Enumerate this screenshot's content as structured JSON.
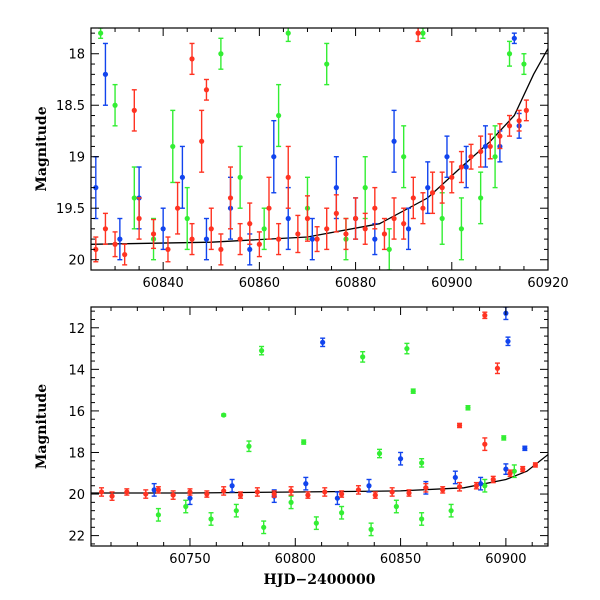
{
  "chart_data": [
    {
      "type": "scatter",
      "ylabel": "Magnitude",
      "xlabel": "",
      "xlim": [
        60825,
        60920
      ],
      "ylim": [
        20.1,
        17.75
      ],
      "y_inverted": true,
      "xticks": [
        60840,
        60860,
        60880,
        60900,
        60920
      ],
      "yticks": [
        18,
        18.5,
        19,
        19.5,
        20
      ],
      "series": [
        {
          "color": "#ff3322",
          "marker": "circle-errorbar"
        },
        {
          "color": "#1144ee",
          "marker": "circle-errorbar"
        },
        {
          "color": "#33ee33",
          "marker": "circle-errorbar"
        },
        {
          "color": "#000000",
          "marker": "line",
          "role": "model curve"
        }
      ],
      "model_curve": {
        "x": [
          60825,
          60850,
          60870,
          60885,
          60895,
          60902,
          60908,
          60913,
          60917,
          60920
        ],
        "y": [
          19.85,
          19.83,
          19.78,
          19.65,
          19.4,
          19.1,
          18.85,
          18.6,
          18.2,
          17.95
        ]
      },
      "points": {
        "red": [
          [
            60826,
            19.9,
            0.12
          ],
          [
            60828,
            19.7,
            0.15
          ],
          [
            60830,
            19.85,
            0.12
          ],
          [
            60832,
            19.95,
            0.1
          ],
          [
            60835,
            19.6,
            0.2
          ],
          [
            60838,
            19.75,
            0.14
          ],
          [
            60841,
            19.9,
            0.12
          ],
          [
            60843,
            19.5,
            0.25
          ],
          [
            60846,
            19.8,
            0.15
          ],
          [
            60848,
            18.85,
            0.3
          ],
          [
            60850,
            19.7,
            0.2
          ],
          [
            60852,
            19.9,
            0.15
          ],
          [
            60854,
            19.4,
            0.3
          ],
          [
            60856,
            19.8,
            0.15
          ],
          [
            60858,
            19.65,
            0.2
          ],
          [
            60860,
            19.85,
            0.12
          ],
          [
            60862,
            19.5,
            0.3
          ],
          [
            60864,
            19.8,
            0.15
          ],
          [
            60866,
            19.2,
            0.3
          ],
          [
            60868,
            19.75,
            0.18
          ],
          [
            60870,
            19.6,
            0.22
          ],
          [
            60872,
            19.8,
            0.12
          ],
          [
            60874,
            19.7,
            0.2
          ],
          [
            60876,
            19.55,
            0.18
          ],
          [
            60878,
            19.75,
            0.15
          ],
          [
            60880,
            19.6,
            0.2
          ],
          [
            60882,
            19.7,
            0.15
          ],
          [
            60884,
            19.5,
            0.2
          ],
          [
            60886,
            19.75,
            0.15
          ],
          [
            60888,
            19.6,
            0.2
          ],
          [
            60890,
            19.65,
            0.15
          ],
          [
            60892,
            19.4,
            0.2
          ],
          [
            60894,
            19.5,
            0.15
          ],
          [
            60896,
            19.35,
            0.2
          ],
          [
            60898,
            19.3,
            0.15
          ],
          [
            60900,
            19.2,
            0.15
          ],
          [
            60902,
            19.1,
            0.15
          ],
          [
            60904,
            19.0,
            0.12
          ],
          [
            60906,
            18.95,
            0.15
          ],
          [
            60908,
            18.9,
            0.12
          ],
          [
            60910,
            18.8,
            0.12
          ],
          [
            60912,
            18.7,
            0.1
          ],
          [
            60914,
            18.65,
            0.1
          ],
          [
            60915.5,
            18.55,
            0.1
          ],
          [
            60834,
            18.55,
            0.2
          ],
          [
            60846,
            18.05,
            0.15
          ],
          [
            60849,
            18.35,
            0.1
          ],
          [
            60893,
            17.8,
            0.08
          ]
        ],
        "blue": [
          [
            60826,
            19.3,
            0.3
          ],
          [
            60828,
            18.2,
            0.3
          ],
          [
            60831,
            19.8,
            0.2
          ],
          [
            60835,
            19.4,
            0.3
          ],
          [
            60840,
            19.7,
            0.2
          ],
          [
            60844,
            19.2,
            0.3
          ],
          [
            60849,
            19.8,
            0.2
          ],
          [
            60854,
            19.5,
            0.3
          ],
          [
            60858,
            19.9,
            0.15
          ],
          [
            60863,
            19.0,
            0.35
          ],
          [
            60866,
            19.6,
            0.3
          ],
          [
            60871,
            19.8,
            0.2
          ],
          [
            60876,
            19.3,
            0.3
          ],
          [
            60880,
            19.6,
            0.2
          ],
          [
            60884,
            19.8,
            0.15
          ],
          [
            60888,
            18.85,
            0.3
          ],
          [
            60891,
            19.7,
            0.2
          ],
          [
            60895,
            19.3,
            0.25
          ],
          [
            60899,
            19.0,
            0.2
          ],
          [
            60903,
            19.1,
            0.2
          ],
          [
            60907,
            18.9,
            0.2
          ],
          [
            60910,
            18.9,
            0.15
          ],
          [
            60913,
            17.85,
            0.05
          ],
          [
            60914,
            18.7,
            0.12
          ]
        ],
        "green": [
          [
            60827,
            17.8,
            0.05
          ],
          [
            60830,
            18.5,
            0.2
          ],
          [
            60834,
            19.4,
            0.3
          ],
          [
            60838,
            19.8,
            0.2
          ],
          [
            60842,
            18.9,
            0.35
          ],
          [
            60845,
            19.6,
            0.3
          ],
          [
            60852,
            18.0,
            0.15
          ],
          [
            60856,
            19.2,
            0.3
          ],
          [
            60861,
            19.7,
            0.2
          ],
          [
            60864,
            18.6,
            0.3
          ],
          [
            60866,
            17.8,
            0.08
          ],
          [
            60870,
            19.5,
            0.3
          ],
          [
            60874,
            18.1,
            0.2
          ],
          [
            60878,
            19.8,
            0.2
          ],
          [
            60882,
            19.3,
            0.3
          ],
          [
            60887,
            19.9,
            0.2
          ],
          [
            60890,
            19.0,
            0.3
          ],
          [
            60894,
            17.8,
            0.05
          ],
          [
            60898,
            19.6,
            0.25
          ],
          [
            60902,
            19.7,
            0.3
          ],
          [
            60906,
            19.4,
            0.25
          ],
          [
            60909,
            19.0,
            0.3
          ],
          [
            60912,
            18.0,
            0.12
          ],
          [
            60915,
            18.1,
            0.1
          ]
        ]
      }
    },
    {
      "type": "scatter",
      "ylabel": "Magnitude",
      "xlabel": "HJD−2400000",
      "xlim": [
        60703,
        60920
      ],
      "ylim": [
        22.5,
        11
      ],
      "y_inverted": true,
      "xticks": [
        60750,
        60800,
        60850,
        60900
      ],
      "yticks": [
        12,
        14,
        16,
        18,
        20,
        22
      ],
      "series": [
        {
          "color": "#ff3322",
          "marker": "circle-errorbar"
        },
        {
          "color": "#1144ee",
          "marker": "circle-errorbar"
        },
        {
          "color": "#33ee33",
          "marker": "circle-errorbar"
        },
        {
          "color": "#000000",
          "marker": "line",
          "role": "model curve"
        }
      ],
      "model_curve": {
        "x": [
          60703,
          60750,
          60800,
          60850,
          60880,
          60900,
          60910,
          60920
        ],
        "y": [
          19.95,
          19.95,
          19.9,
          19.85,
          19.7,
          19.3,
          18.9,
          18.1
        ]
      },
      "points": {
        "red": [
          [
            60708,
            19.9,
            0.2
          ],
          [
            60713,
            20.1,
            0.2
          ],
          [
            60720,
            19.9,
            0.15
          ],
          [
            60729,
            20.0,
            0.2
          ],
          [
            60735,
            19.8,
            0.15
          ],
          [
            60742,
            20.05,
            0.2
          ],
          [
            60750,
            19.9,
            0.15
          ],
          [
            60758,
            20.0,
            0.15
          ],
          [
            60766,
            19.85,
            0.2
          ],
          [
            60774,
            20.05,
            0.15
          ],
          [
            60782,
            19.9,
            0.2
          ],
          [
            60790,
            20.0,
            0.15
          ],
          [
            60798,
            19.85,
            0.2
          ],
          [
            60806,
            20.05,
            0.15
          ],
          [
            60814,
            19.9,
            0.2
          ],
          [
            60822,
            20.0,
            0.15
          ],
          [
            60830,
            19.8,
            0.2
          ],
          [
            60838,
            20.05,
            0.15
          ],
          [
            60846,
            19.9,
            0.2
          ],
          [
            60854,
            19.95,
            0.15
          ],
          [
            60862,
            19.7,
            0.2
          ],
          [
            60870,
            19.8,
            0.15
          ],
          [
            60878,
            19.65,
            0.2
          ],
          [
            60886,
            19.6,
            0.15
          ],
          [
            60894,
            19.3,
            0.15
          ],
          [
            60902,
            19.0,
            0.15
          ],
          [
            60908,
            18.8,
            0.12
          ],
          [
            60914,
            18.6,
            0.1
          ],
          [
            60890,
            11.4,
            0.15
          ],
          [
            60896,
            13.95,
            0.25
          ],
          [
            60878,
            16.7,
            0.1
          ],
          [
            60890,
            17.6,
            0.3
          ]
        ],
        "blue": [
          [
            60733,
            19.8,
            0.3
          ],
          [
            60750,
            20.2,
            0.3
          ],
          [
            60770,
            19.6,
            0.3
          ],
          [
            60790,
            20.1,
            0.3
          ],
          [
            60805,
            19.5,
            0.3
          ],
          [
            60820,
            20.2,
            0.3
          ],
          [
            60835,
            19.6,
            0.3
          ],
          [
            60850,
            18.3,
            0.3
          ],
          [
            60862,
            19.7,
            0.3
          ],
          [
            60876,
            19.2,
            0.3
          ],
          [
            60888,
            19.5,
            0.3
          ],
          [
            60900,
            18.8,
            0.25
          ],
          [
            60813,
            12.7,
            0.2
          ],
          [
            60900,
            11.3,
            0.3
          ],
          [
            60901,
            12.65,
            0.2
          ],
          [
            60909,
            17.8,
            0.1
          ]
        ],
        "green": [
          [
            60735,
            21.0,
            0.3
          ],
          [
            60748,
            20.6,
            0.3
          ],
          [
            60760,
            21.2,
            0.3
          ],
          [
            60772,
            20.8,
            0.3
          ],
          [
            60785,
            21.6,
            0.3
          ],
          [
            60798,
            20.4,
            0.3
          ],
          [
            60810,
            21.4,
            0.3
          ],
          [
            60822,
            20.9,
            0.3
          ],
          [
            60836,
            21.7,
            0.3
          ],
          [
            60848,
            20.6,
            0.3
          ],
          [
            60860,
            21.2,
            0.3
          ],
          [
            60874,
            20.8,
            0.3
          ],
          [
            60890,
            19.6,
            0.3
          ],
          [
            60904,
            18.9,
            0.3
          ],
          [
            60784,
            13.1,
            0.2
          ],
          [
            60832,
            13.4,
            0.25
          ],
          [
            60853,
            13.0,
            0.25
          ],
          [
            60856,
            15.05,
            0.1
          ],
          [
            60766,
            16.2,
            0.05
          ],
          [
            60882,
            15.85,
            0.1
          ],
          [
            60899,
            17.3,
            0.1
          ],
          [
            60778,
            17.7,
            0.25
          ],
          [
            60804,
            17.5,
            0.1
          ],
          [
            60840,
            18.05,
            0.2
          ],
          [
            60860,
            18.5,
            0.2
          ]
        ]
      }
    }
  ]
}
